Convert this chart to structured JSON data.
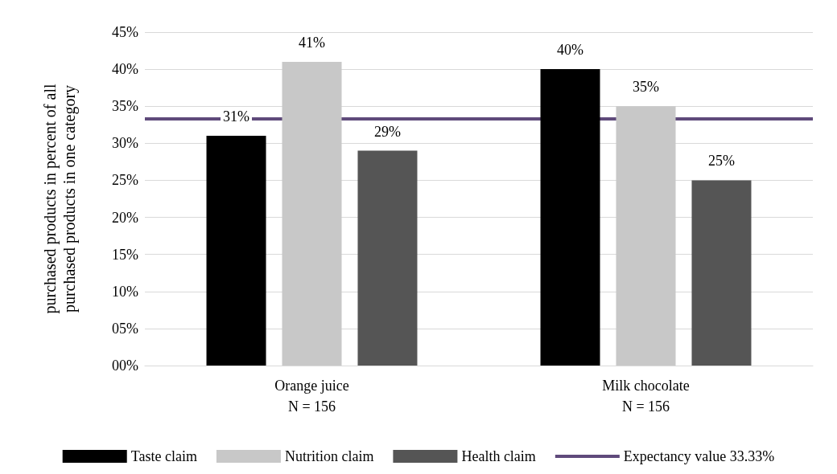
{
  "chart_data": {
    "type": "bar",
    "ylabel": "purchased products in percent of all\npurchased products in one category",
    "categories": [
      "Orange juice\nN = 156",
      "Milk chocolate\nN = 156"
    ],
    "series": [
      {
        "name": "Taste claim",
        "color": "#000000",
        "values": [
          31,
          40
        ],
        "value_labels": [
          "31%",
          "40%"
        ]
      },
      {
        "name": "Nutrition claim",
        "color": "#c8c8c8",
        "values": [
          41,
          35
        ],
        "value_labels": [
          "41%",
          "35%"
        ]
      },
      {
        "name": "Health claim",
        "color": "#555555",
        "values": [
          29,
          25
        ],
        "value_labels": [
          "29%",
          "25%"
        ]
      }
    ],
    "ylim": [
      0,
      45
    ],
    "yticks": [
      {
        "value": 0,
        "label": "00%"
      },
      {
        "value": 5,
        "label": "05%"
      },
      {
        "value": 10,
        "label": "10%"
      },
      {
        "value": 15,
        "label": "15%"
      },
      {
        "value": 20,
        "label": "20%"
      },
      {
        "value": 25,
        "label": "25%"
      },
      {
        "value": 30,
        "label": "30%"
      },
      {
        "value": 35,
        "label": "35%"
      },
      {
        "value": 40,
        "label": "40%"
      },
      {
        "value": 45,
        "label": "45%"
      }
    ],
    "ref_lines": [
      {
        "axis": "y",
        "value": 33.33,
        "label": "Expectancy value 33.33%",
        "color": "#5f4a7b"
      }
    ],
    "grid": "y",
    "legend": "bottom"
  }
}
